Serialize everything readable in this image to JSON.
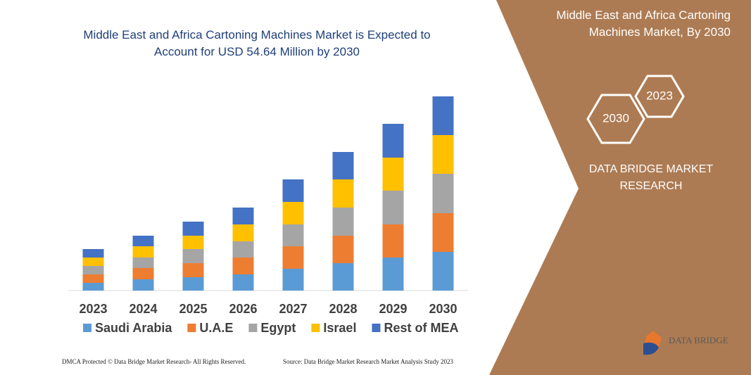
{
  "chart_data": {
    "type": "bar",
    "stacked": true,
    "title": "Middle East and Africa Cartoning Machines Market is Expected to Account for USD 54.64 Million by 2030",
    "categories": [
      "2023",
      "2024",
      "2025",
      "2026",
      "2027",
      "2028",
      "2029",
      "2030"
    ],
    "series": [
      {
        "name": "Saudi Arabia",
        "color": "#5b9bd5",
        "values": [
          11,
          16,
          19,
          23,
          31,
          39,
          47,
          55
        ]
      },
      {
        "name": "U.A.E",
        "color": "#ed7d31",
        "values": [
          12,
          16,
          20,
          24,
          32,
          39,
          47,
          55
        ]
      },
      {
        "name": "Egypt",
        "color": "#a5a5a5",
        "values": [
          12,
          15,
          20,
          23,
          31,
          40,
          48,
          56
        ]
      },
      {
        "name": "Israel",
        "color": "#ffc000",
        "values": [
          12,
          16,
          19,
          24,
          32,
          40,
          47,
          55
        ]
      },
      {
        "name": "Rest of MEA",
        "color": "#4472c4",
        "values": [
          12,
          15,
          20,
          24,
          32,
          39,
          48,
          55
        ]
      }
    ],
    "ylim": [
      0,
      300
    ],
    "legend": "bottom"
  },
  "panel": {
    "heading": "Middle East and Africa Cartoning Machines Market, By 2030",
    "hex_labels": [
      "2023",
      "2030"
    ],
    "brand": "DATA BRIDGE MARKET RESEARCH"
  },
  "footer": {
    "dmca": "DMCA Protected © Data Bridge Market Research-  All Rights Reserved.",
    "source": "Source: Data Bridge Market Research  Market Analysis Study 2023",
    "logo": "DATA BRIDGE"
  }
}
